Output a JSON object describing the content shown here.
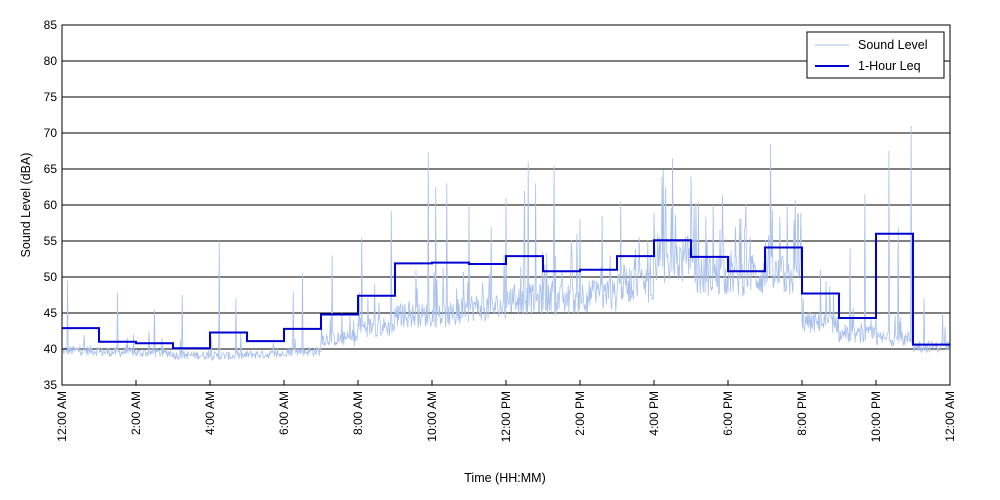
{
  "chart_data": {
    "type": "line",
    "title": "",
    "xlabel": "Time (HH:MM)",
    "ylabel": "Sound Level (dBA)",
    "ylim": [
      35,
      85
    ],
    "yticks": [
      35,
      40,
      45,
      50,
      55,
      60,
      65,
      70,
      75,
      80,
      85
    ],
    "xlim_hours": [
      0,
      24
    ],
    "xtick_labels": [
      "12:00 AM",
      "2:00 AM",
      "4:00 AM",
      "6:00 AM",
      "8:00 AM",
      "10:00 AM",
      "12:00 PM",
      "2:00 PM",
      "4:00 PM",
      "6:00 PM",
      "8:00 PM",
      "10:00 PM",
      "12:00 AM"
    ],
    "grid": "horizontal",
    "legend_position": "top-right",
    "series": [
      {
        "name": "Sound Level",
        "style": "thin-line",
        "color": "#a9c0ee",
        "note": "Short-interval measured levels; profile approximated from hourly baseline and visible peaks",
        "hourly_baseline": [
          39.5,
          39.3,
          39.2,
          38.9,
          38.8,
          39.0,
          39.4,
          41.0,
          42.5,
          44.0,
          44.0,
          45.0,
          46.0,
          46.0,
          46.5,
          48.0,
          51.0,
          49.0,
          49.0,
          49.0,
          43.0,
          41.5,
          41.0,
          40.0
        ],
        "peaks": [
          {
            "x": 0.15,
            "y": 49.5
          },
          {
            "x": 1.5,
            "y": 47.8
          },
          {
            "x": 2.5,
            "y": 45.5
          },
          {
            "x": 3.25,
            "y": 47.5
          },
          {
            "x": 4.25,
            "y": 55.0
          },
          {
            "x": 4.7,
            "y": 47.0
          },
          {
            "x": 6.25,
            "y": 48.0
          },
          {
            "x": 6.5,
            "y": 50.5
          },
          {
            "x": 7.3,
            "y": 53.0
          },
          {
            "x": 8.1,
            "y": 55.5
          },
          {
            "x": 8.9,
            "y": 59.2
          },
          {
            "x": 9.9,
            "y": 67.3
          },
          {
            "x": 10.1,
            "y": 62.5
          },
          {
            "x": 10.4,
            "y": 63.0
          },
          {
            "x": 11.0,
            "y": 60.0
          },
          {
            "x": 11.6,
            "y": 57.0
          },
          {
            "x": 12.0,
            "y": 61.0
          },
          {
            "x": 12.5,
            "y": 62.0
          },
          {
            "x": 12.6,
            "y": 66.0
          },
          {
            "x": 12.8,
            "y": 63.0
          },
          {
            "x": 13.3,
            "y": 65.5
          },
          {
            "x": 14.0,
            "y": 58.0
          },
          {
            "x": 14.6,
            "y": 58.5
          },
          {
            "x": 15.1,
            "y": 60.5
          },
          {
            "x": 15.6,
            "y": 55.5
          },
          {
            "x": 16.3,
            "y": 58.0
          },
          {
            "x": 16.5,
            "y": 66.5
          },
          {
            "x": 17.0,
            "y": 64.0
          },
          {
            "x": 17.6,
            "y": 60.0
          },
          {
            "x": 18.2,
            "y": 57.0
          },
          {
            "x": 18.6,
            "y": 55.5
          },
          {
            "x": 19.15,
            "y": 68.5
          },
          {
            "x": 19.6,
            "y": 60.0
          },
          {
            "x": 20.5,
            "y": 51.0
          },
          {
            "x": 21.3,
            "y": 54.0
          },
          {
            "x": 21.7,
            "y": 61.5
          },
          {
            "x": 22.35,
            "y": 67.5
          },
          {
            "x": 22.6,
            "y": 57.0
          },
          {
            "x": 22.95,
            "y": 71.0
          },
          {
            "x": 23.3,
            "y": 47.0
          },
          {
            "x": 23.8,
            "y": 45.0
          }
        ]
      },
      {
        "name": "1-Hour Leq",
        "style": "step",
        "color": "#0000d0",
        "hours": [
          0,
          1,
          2,
          3,
          4,
          5,
          6,
          7,
          8,
          9,
          10,
          11,
          12,
          13,
          14,
          15,
          16,
          17,
          18,
          19,
          20,
          21,
          22,
          23
        ],
        "values": [
          42.9,
          41.0,
          40.8,
          40.1,
          42.3,
          41.1,
          42.8,
          44.8,
          47.4,
          51.9,
          52.0,
          51.8,
          52.9,
          50.8,
          51.0,
          52.9,
          55.1,
          52.8,
          50.8,
          54.1,
          47.7,
          44.3,
          56.0,
          40.6
        ]
      }
    ]
  }
}
